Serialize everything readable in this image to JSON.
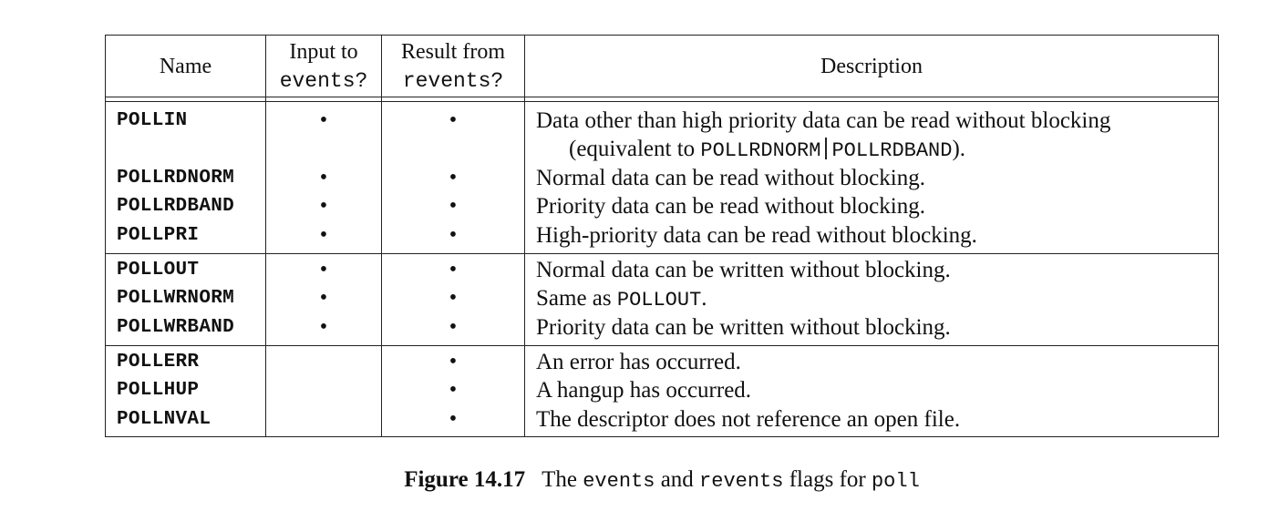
{
  "header": {
    "name": "Name",
    "input_line1": "Input to",
    "input_line2": "events?",
    "result_line1": "Result from",
    "result_line2": "revents?",
    "description": "Description"
  },
  "rows": [
    {
      "name": "POLLIN",
      "input": "•",
      "result": "•",
      "desc": "Data other than high priority data can be read without blocking",
      "desc2_pre": "(equivalent to ",
      "desc2_code1": "POLLRDNORM",
      "desc2_code2": "POLLRDBAND",
      "desc2_post": ")."
    },
    {
      "name": "POLLRDNORM",
      "input": "•",
      "result": "•",
      "desc": "Normal data can be read without blocking."
    },
    {
      "name": "POLLRDBAND",
      "input": "•",
      "result": "•",
      "desc": "Priority data can be read without blocking."
    },
    {
      "name": "POLLPRI",
      "input": "•",
      "result": "•",
      "desc": "High-priority data can be read without blocking."
    },
    {
      "name": "POLLOUT",
      "input": "•",
      "result": "•",
      "desc": "Normal data can be written without blocking."
    },
    {
      "name": "POLLWRNORM",
      "input": "•",
      "result": "•",
      "desc_pre": "Same as ",
      "desc_code": "POLLOUT",
      "desc_post": "."
    },
    {
      "name": "POLLWRBAND",
      "input": "•",
      "result": "•",
      "desc": "Priority data can be written without blocking."
    },
    {
      "name": "POLLERR",
      "input": "",
      "result": "•",
      "desc": "An error has occurred."
    },
    {
      "name": "POLLHUP",
      "input": "",
      "result": "•",
      "desc": "A hangup has occurred."
    },
    {
      "name": "POLLNVAL",
      "input": "",
      "result": "•",
      "desc": "The descriptor does not reference an open file."
    }
  ],
  "caption": {
    "label": "Figure 14.17",
    "text1": "The ",
    "code1": "events",
    "text2": " and ",
    "code2": "revents",
    "text3": " flags for ",
    "code3": "poll"
  }
}
